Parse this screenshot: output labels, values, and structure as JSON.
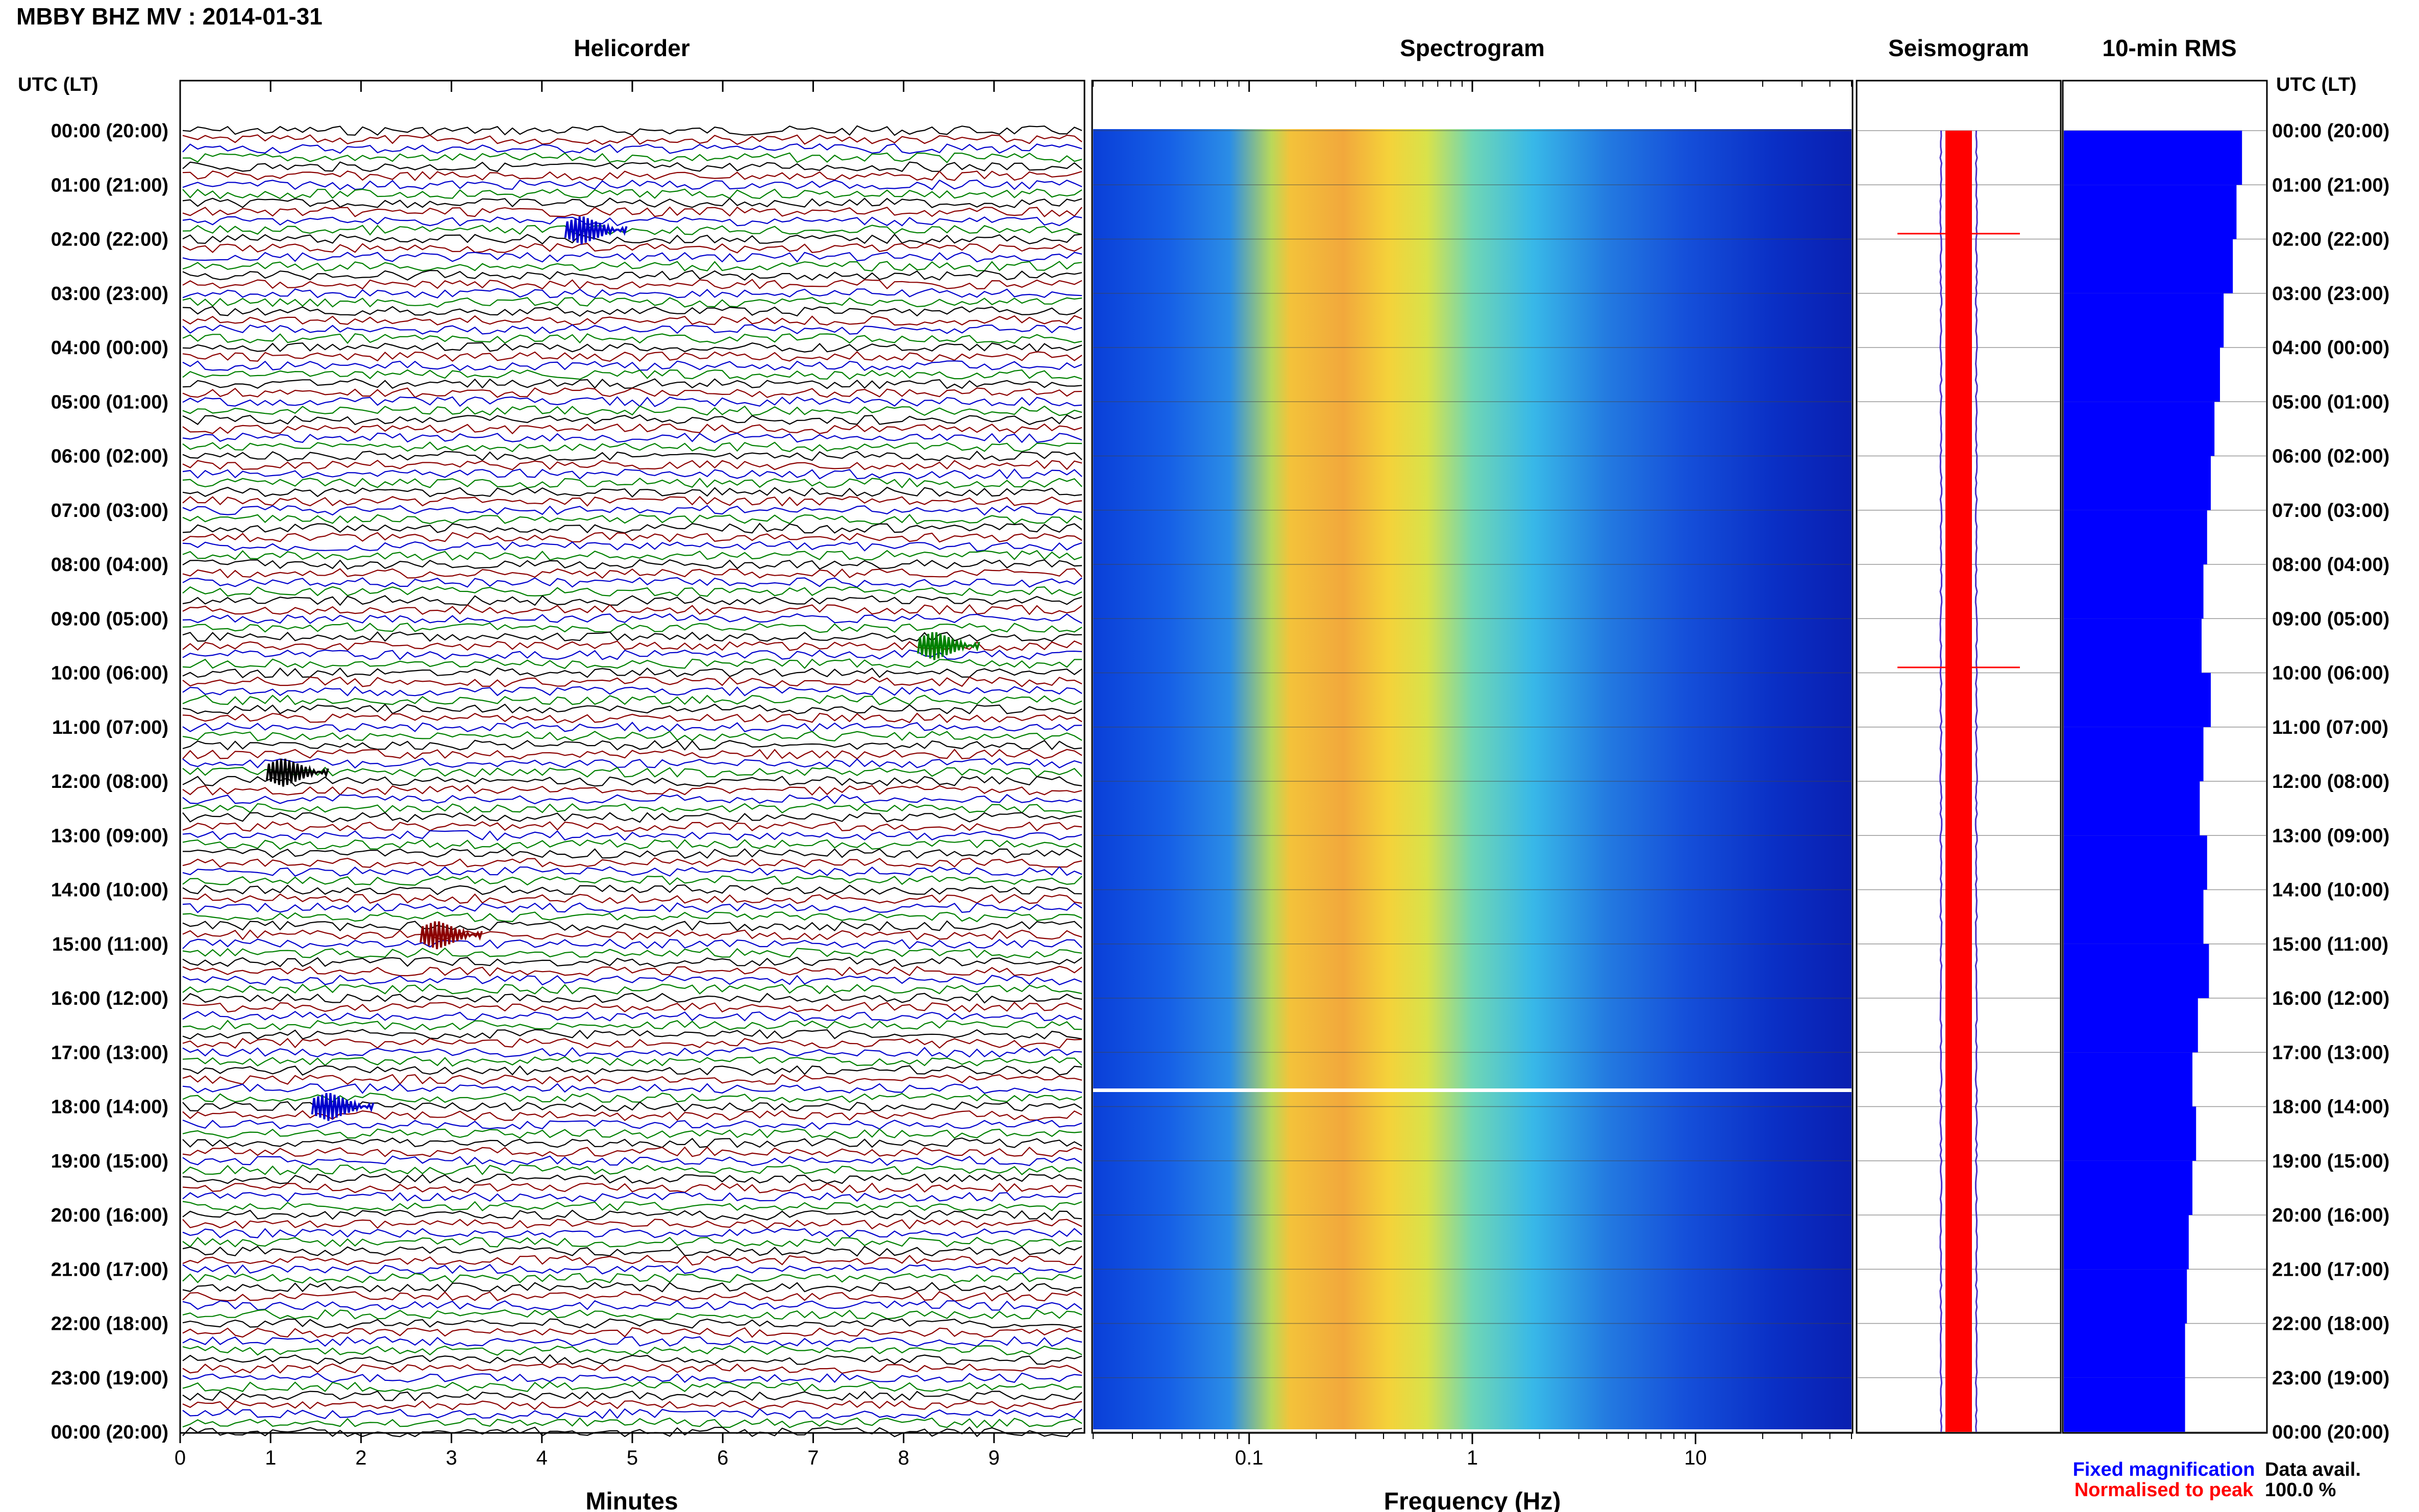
{
  "header": {
    "station_title": "MBBY BHZ MV : 2014-01-31",
    "left_axis_title": "UTC (LT)",
    "right_axis_title": "UTC (LT)"
  },
  "panels": {
    "helicorder": "Helicorder",
    "spectrogram": "Spectrogram",
    "seismogram": "Seismogram",
    "rms": "10-min RMS"
  },
  "time_labels": [
    "00:00 (20:00)",
    "01:00 (21:00)",
    "02:00 (22:00)",
    "03:00 (23:00)",
    "04:00 (00:00)",
    "05:00 (01:00)",
    "06:00 (02:00)",
    "07:00 (03:00)",
    "08:00 (04:00)",
    "09:00 (05:00)",
    "10:00 (06:00)",
    "11:00 (07:00)",
    "12:00 (08:00)",
    "13:00 (09:00)",
    "14:00 (10:00)",
    "15:00 (11:00)",
    "16:00 (12:00)",
    "17:00 (13:00)",
    "18:00 (14:00)",
    "19:00 (15:00)",
    "20:00 (16:00)",
    "21:00 (17:00)",
    "22:00 (18:00)",
    "23:00 (19:00)",
    "00:00 (20:00)"
  ],
  "helicorder_axis": {
    "xlabel": "Minutes",
    "ticks": [
      "0",
      "1",
      "2",
      "3",
      "4",
      "5",
      "6",
      "7",
      "8",
      "9"
    ],
    "xlim": [
      0,
      10
    ],
    "trace_colors": [
      "#000000",
      "#8b0000",
      "#0000cc",
      "#008000"
    ]
  },
  "spectrogram_axis": {
    "xlabel": "Frequency (Hz)",
    "ticks": [
      "0.1",
      "1",
      "10"
    ],
    "xlim": [
      0.02,
      50
    ],
    "scale": "log"
  },
  "legend": {
    "fixed": "Fixed magnification",
    "fixed_color": "#0000ff",
    "normalised": "Normalised to peak",
    "normalised_color": "#ff0000"
  },
  "availability": {
    "label": "Data avail.",
    "value": "100.0 %"
  },
  "colors": {
    "rms_bar": "#0000ff",
    "seismogram_fill": "#ff0000",
    "seismogram_edge": "#4b30c8"
  },
  "chart_data": [
    {
      "type": "line",
      "name": "Helicorder",
      "xlabel": "Minutes",
      "xlim": [
        0,
        10
      ],
      "rows": 145,
      "row_minutes": 10,
      "events": [
        {
          "time": "01:50",
          "minute": 4.4
        },
        {
          "time": "09:30",
          "minute": 8.3
        },
        {
          "time": "11:50",
          "minute": 1.1
        },
        {
          "time": "14:50",
          "minute": 2.8
        },
        {
          "time": "18:00",
          "minute": 1.6
        }
      ]
    },
    {
      "type": "heatmap",
      "name": "Spectrogram",
      "xlabel": "Frequency (Hz)",
      "xscale": "log",
      "xlim": [
        0.02,
        50
      ],
      "peak_band_hz": [
        0.15,
        0.6
      ],
      "gap_time": "17:50"
    },
    {
      "type": "bar",
      "name": "10-min RMS",
      "orientation": "horizontal",
      "hours": [
        "00:00",
        "01:00",
        "02:00",
        "03:00",
        "04:00",
        "05:00",
        "06:00",
        "07:00",
        "08:00",
        "09:00",
        "10:00",
        "11:00",
        "12:00",
        "13:00",
        "14:00",
        "15:00",
        "16:00",
        "17:00",
        "18:00",
        "19:00",
        "20:00",
        "21:00",
        "22:00",
        "23:00"
      ],
      "relative_values": [
        0.97,
        0.94,
        0.92,
        0.87,
        0.85,
        0.82,
        0.8,
        0.78,
        0.76,
        0.75,
        0.8,
        0.76,
        0.74,
        0.78,
        0.76,
        0.79,
        0.73,
        0.7,
        0.72,
        0.7,
        0.68,
        0.67,
        0.66,
        0.66
      ]
    }
  ]
}
